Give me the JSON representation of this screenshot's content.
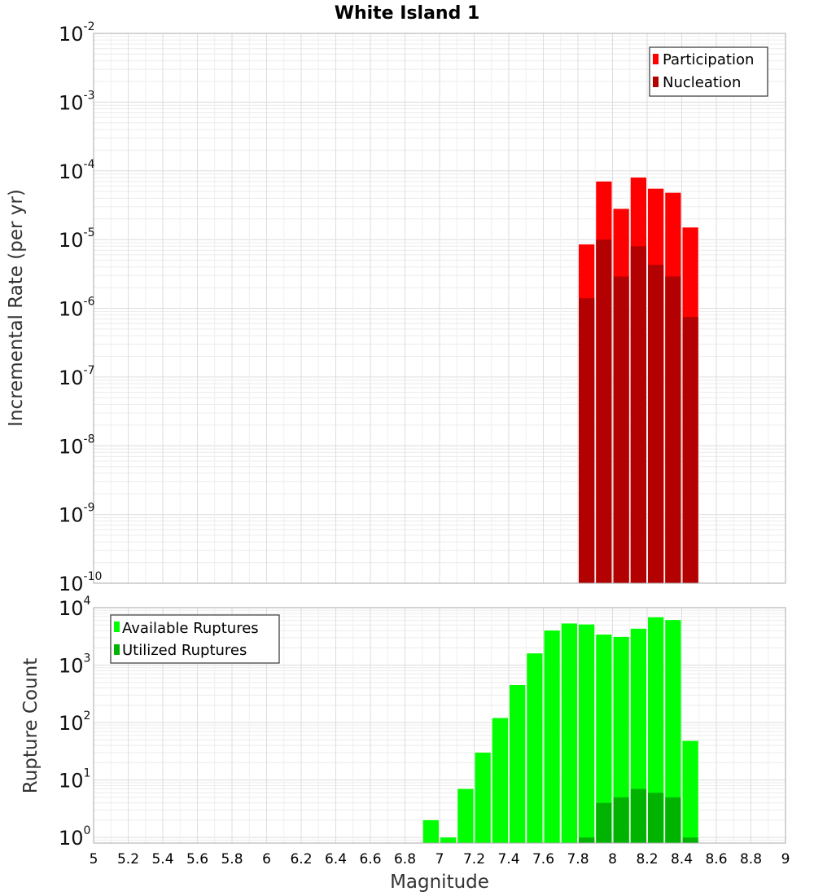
{
  "chart_data": [
    {
      "type": "bar",
      "title": "White Island 1",
      "xlabel": "",
      "ylabel": "Incremental Rate (per yr)",
      "yscale": "log",
      "ylim": [
        1e-10,
        0.01
      ],
      "xlim": [
        5,
        9
      ],
      "grid": true,
      "legend_placement": "top-right",
      "x": [
        7.85,
        7.95,
        8.05,
        8.15,
        8.25,
        8.35,
        8.45
      ],
      "series": [
        {
          "name": "Participation",
          "color": "#ff0000",
          "values": [
            8.5e-06,
            7e-05,
            2.8e-05,
            8e-05,
            5.5e-05,
            4.8e-05,
            1.5e-05
          ]
        },
        {
          "name": "Nucleation",
          "color": "#b30000",
          "values": [
            1.4e-06,
            1e-05,
            2.9e-06,
            8e-06,
            4.3e-06,
            2.9e-06,
            7.5e-07
          ]
        }
      ],
      "y_ticks": [
        {
          "base": "10",
          "exp": "-2",
          "value": 0.01
        },
        {
          "base": "10",
          "exp": "-3",
          "value": 0.001
        },
        {
          "base": "10",
          "exp": "-4",
          "value": 0.0001
        },
        {
          "base": "10",
          "exp": "-5",
          "value": 1e-05
        },
        {
          "base": "10",
          "exp": "-6",
          "value": 1e-06
        },
        {
          "base": "10",
          "exp": "-7",
          "value": 1e-07
        },
        {
          "base": "10",
          "exp": "-8",
          "value": 1e-08
        },
        {
          "base": "10",
          "exp": "-9",
          "value": 1e-09
        },
        {
          "base": "10",
          "exp": "-10",
          "value": 1e-10
        }
      ]
    },
    {
      "type": "bar",
      "title": "",
      "xlabel": "Magnitude",
      "ylabel": "Rupture Count",
      "yscale": "log",
      "ylim": [
        0.8,
        10000
      ],
      "xlim": [
        5,
        9
      ],
      "grid": true,
      "legend_placement": "top-left",
      "x_ticks": [
        "5",
        "5.2",
        "5.4",
        "5.6",
        "5.8",
        "6",
        "6.2",
        "6.4",
        "6.6",
        "6.8",
        "7",
        "7.2",
        "7.4",
        "7.6",
        "7.8",
        "8",
        "8.2",
        "8.4",
        "8.6",
        "8.8",
        "9"
      ],
      "x": [
        6.95,
        7.05,
        7.15,
        7.25,
        7.35,
        7.45,
        7.55,
        7.65,
        7.75,
        7.85,
        7.95,
        8.05,
        8.15,
        8.25,
        8.35,
        8.45
      ],
      "series": [
        {
          "name": "Available Ruptures",
          "color": "#00ff00",
          "values": [
            2,
            1,
            7,
            30,
            120,
            450,
            1600,
            4000,
            5300,
            5100,
            3400,
            3100,
            4300,
            6800,
            6100,
            48
          ]
        },
        {
          "name": "Utilized Ruptures",
          "color": "#00b300",
          "values": [
            null,
            null,
            null,
            null,
            null,
            null,
            null,
            null,
            null,
            1,
            4,
            5,
            7,
            6,
            5,
            1
          ]
        }
      ],
      "y_ticks": [
        {
          "base": "10",
          "exp": "4",
          "value": 10000
        },
        {
          "base": "10",
          "exp": "3",
          "value": 1000
        },
        {
          "base": "10",
          "exp": "2",
          "value": 100
        },
        {
          "base": "10",
          "exp": "1",
          "value": 10
        },
        {
          "base": "10",
          "exp": "0",
          "value": 1
        }
      ]
    }
  ]
}
